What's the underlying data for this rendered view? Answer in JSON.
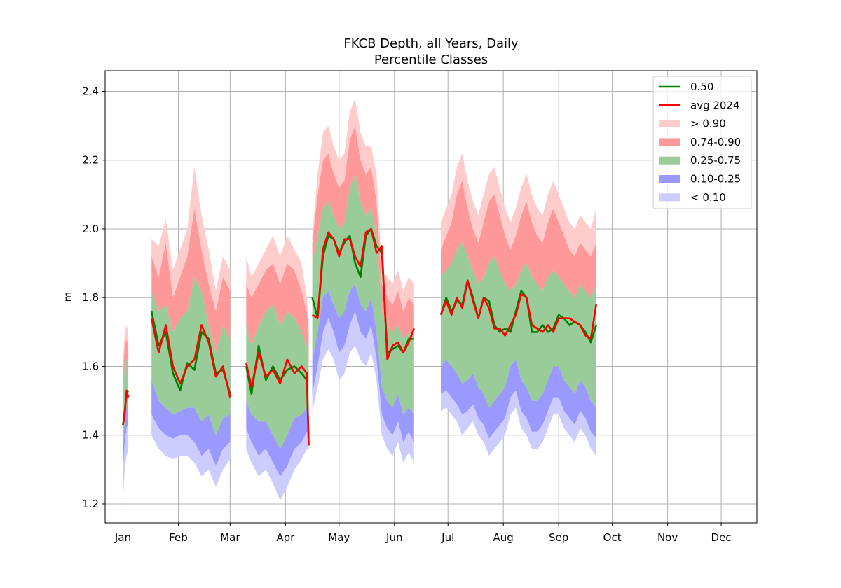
{
  "chart_data": {
    "type": "area",
    "title": "FKCB Depth, all Years, Daily",
    "subtitle": "Percentile Classes",
    "xlabel": "",
    "ylabel": "m",
    "x_ticks": [
      "Jan",
      "Feb",
      "Mar",
      "Apr",
      "May",
      "Jun",
      "Jul",
      "Aug",
      "Sep",
      "Oct",
      "Nov",
      "Dec"
    ],
    "y_ticks": [
      "1.2",
      "1.4",
      "1.6",
      "1.8",
      "2.0",
      "2.2",
      "2.4"
    ],
    "xlim_day": [
      -10,
      355
    ],
    "ylim": [
      1.145,
      2.46
    ],
    "grid": true,
    "legend_position": "top-right",
    "legend": [
      {
        "label": "0.50",
        "kind": "line",
        "color": "#008000"
      },
      {
        "label": "avg 2024",
        "kind": "line",
        "color": "#ff0000"
      },
      {
        "label": "> 0.90",
        "kind": "patch",
        "color": "#ffcccc"
      },
      {
        "label": "0.74-0.90",
        "kind": "patch",
        "color": "#ff9999"
      },
      {
        "label": "0.25-0.75",
        "kind": "patch",
        "color": "#99cc99"
      },
      {
        "label": "0.10-0.25",
        "kind": "patch",
        "color": "#9999ff"
      },
      {
        "label": "< 0.10",
        "kind": "patch",
        "color": "#ccccff"
      }
    ],
    "segments": [
      {
        "x": [
          0,
          1,
          2,
          3
        ],
        "p0": [
          1.22,
          1.3,
          1.34,
          1.36
        ],
        "p10": [
          1.3,
          1.38,
          1.42,
          1.44
        ],
        "p25": [
          1.36,
          1.44,
          1.48,
          1.5
        ],
        "p75": [
          1.52,
          1.6,
          1.62,
          1.62
        ],
        "p90": [
          1.58,
          1.66,
          1.68,
          1.66
        ],
        "p100": [
          1.62,
          1.7,
          1.72,
          1.7
        ],
        "median": [
          1.43,
          1.47,
          1.52,
          1.53
        ],
        "avg2024": [
          1.43,
          1.46,
          1.53,
          1.51
        ]
      },
      {
        "x": [
          16,
          20,
          24,
          28,
          32,
          36,
          40,
          44,
          48,
          52,
          56,
          60
        ],
        "p0": [
          1.4,
          1.36,
          1.34,
          1.33,
          1.34,
          1.34,
          1.32,
          1.28,
          1.3,
          1.25,
          1.3,
          1.33
        ],
        "p10": [
          1.46,
          1.42,
          1.4,
          1.39,
          1.4,
          1.4,
          1.38,
          1.34,
          1.36,
          1.31,
          1.36,
          1.38
        ],
        "p25": [
          1.56,
          1.5,
          1.48,
          1.46,
          1.47,
          1.48,
          1.48,
          1.44,
          1.46,
          1.4,
          1.45,
          1.46
        ],
        "p75": [
          1.82,
          1.76,
          1.78,
          1.7,
          1.74,
          1.76,
          1.86,
          1.82,
          1.72,
          1.64,
          1.72,
          1.68
        ],
        "p90": [
          1.92,
          1.86,
          1.96,
          1.8,
          1.86,
          1.92,
          2.06,
          1.94,
          1.84,
          1.76,
          1.86,
          1.82
        ],
        "p100": [
          1.97,
          1.95,
          2.03,
          1.88,
          1.94,
          2.0,
          2.18,
          2.04,
          1.94,
          1.82,
          1.92,
          1.88
        ],
        "median": [
          1.76,
          1.66,
          1.7,
          1.58,
          1.53,
          1.61,
          1.59,
          1.7,
          1.68,
          1.58,
          1.59,
          1.52
        ],
        "avg2024": [
          1.74,
          1.64,
          1.72,
          1.6,
          1.55,
          1.6,
          1.62,
          1.72,
          1.67,
          1.57,
          1.6,
          1.51
        ]
      },
      {
        "x": [
          69,
          72,
          76,
          80,
          84,
          88,
          92,
          96,
          100,
          103,
          104
        ],
        "p0": [
          1.36,
          1.32,
          1.28,
          1.3,
          1.26,
          1.21,
          1.25,
          1.3,
          1.33,
          1.36,
          1.36
        ],
        "p10": [
          1.42,
          1.38,
          1.34,
          1.36,
          1.32,
          1.28,
          1.31,
          1.36,
          1.38,
          1.41,
          1.41
        ],
        "p25": [
          1.5,
          1.46,
          1.44,
          1.44,
          1.4,
          1.36,
          1.4,
          1.45,
          1.46,
          1.48,
          1.48
        ],
        "p75": [
          1.72,
          1.66,
          1.72,
          1.76,
          1.78,
          1.72,
          1.76,
          1.74,
          1.7,
          1.66,
          1.6
        ],
        "p90": [
          1.84,
          1.8,
          1.84,
          1.88,
          1.9,
          1.84,
          1.9,
          1.88,
          1.82,
          1.76,
          1.7
        ],
        "p100": [
          1.92,
          1.86,
          1.9,
          1.94,
          1.98,
          1.92,
          1.98,
          1.94,
          1.9,
          1.8,
          1.74
        ],
        "median": [
          1.6,
          1.52,
          1.66,
          1.56,
          1.6,
          1.56,
          1.59,
          1.6,
          1.58,
          1.56,
          1.37
        ],
        "avg2024": [
          1.61,
          1.54,
          1.64,
          1.57,
          1.59,
          1.55,
          1.62,
          1.58,
          1.6,
          1.58,
          1.37
        ]
      },
      {
        "x": [
          106,
          109,
          112,
          115,
          118,
          121,
          124,
          127,
          130,
          133,
          136,
          139,
          142,
          145,
          148,
          151,
          154,
          157,
          160,
          163
        ],
        "p0": [
          1.47,
          1.54,
          1.62,
          1.65,
          1.62,
          1.56,
          1.58,
          1.64,
          1.66,
          1.62,
          1.6,
          1.64,
          1.56,
          1.4,
          1.36,
          1.34,
          1.38,
          1.32,
          1.35,
          1.32
        ],
        "p10": [
          1.52,
          1.6,
          1.7,
          1.74,
          1.7,
          1.64,
          1.66,
          1.72,
          1.76,
          1.7,
          1.68,
          1.72,
          1.62,
          1.46,
          1.42,
          1.4,
          1.44,
          1.38,
          1.41,
          1.38
        ],
        "p25": [
          1.62,
          1.7,
          1.8,
          1.82,
          1.78,
          1.74,
          1.76,
          1.82,
          1.84,
          1.78,
          1.76,
          1.8,
          1.7,
          1.54,
          1.5,
          1.48,
          1.52,
          1.46,
          1.48,
          1.46
        ],
        "p75": [
          1.9,
          1.98,
          2.06,
          2.08,
          2.04,
          2.0,
          2.02,
          2.12,
          2.16,
          2.08,
          2.04,
          2.06,
          1.98,
          1.76,
          1.72,
          1.7,
          1.72,
          1.68,
          1.7,
          1.68
        ],
        "p90": [
          1.96,
          2.1,
          2.2,
          2.22,
          2.16,
          2.12,
          2.14,
          2.26,
          2.3,
          2.2,
          2.16,
          2.18,
          2.08,
          1.84,
          1.8,
          1.78,
          1.82,
          1.76,
          1.8,
          1.78
        ],
        "p100": [
          1.98,
          2.16,
          2.28,
          2.3,
          2.24,
          2.2,
          2.22,
          2.34,
          2.38,
          2.28,
          2.24,
          2.24,
          2.16,
          1.88,
          1.86,
          1.84,
          1.88,
          1.82,
          1.86,
          1.84
        ],
        "median": [
          1.8,
          1.74,
          1.92,
          1.98,
          1.97,
          1.93,
          1.96,
          1.98,
          1.9,
          1.86,
          1.98,
          2.0,
          1.95,
          1.93,
          1.64,
          1.65,
          1.66,
          1.64,
          1.68,
          1.68
        ],
        "avg2024": [
          1.75,
          1.74,
          1.94,
          1.99,
          1.97,
          1.92,
          1.97,
          1.97,
          1.92,
          1.89,
          1.99,
          2.0,
          1.93,
          1.95,
          1.62,
          1.66,
          1.67,
          1.64,
          1.67,
          1.71
        ]
      },
      {
        "x": [
          178,
          181,
          184,
          187,
          190,
          193,
          196,
          199,
          202,
          205,
          208,
          211,
          214,
          217,
          220,
          223,
          226,
          229,
          232,
          235,
          238,
          241,
          244,
          247,
          250,
          253,
          256,
          259,
          262,
          265
        ],
        "p0": [
          1.47,
          1.48,
          1.46,
          1.44,
          1.4,
          1.42,
          1.44,
          1.4,
          1.38,
          1.34,
          1.36,
          1.38,
          1.4,
          1.46,
          1.48,
          1.42,
          1.4,
          1.36,
          1.36,
          1.38,
          1.42,
          1.46,
          1.46,
          1.42,
          1.4,
          1.38,
          1.42,
          1.4,
          1.36,
          1.34
        ],
        "p10": [
          1.52,
          1.53,
          1.51,
          1.49,
          1.46,
          1.47,
          1.49,
          1.45,
          1.43,
          1.39,
          1.41,
          1.43,
          1.45,
          1.51,
          1.53,
          1.47,
          1.45,
          1.41,
          1.41,
          1.43,
          1.47,
          1.51,
          1.51,
          1.47,
          1.45,
          1.43,
          1.47,
          1.45,
          1.41,
          1.39
        ],
        "p25": [
          1.6,
          1.62,
          1.6,
          1.58,
          1.55,
          1.56,
          1.58,
          1.54,
          1.52,
          1.48,
          1.5,
          1.52,
          1.54,
          1.6,
          1.62,
          1.56,
          1.54,
          1.5,
          1.5,
          1.52,
          1.56,
          1.6,
          1.6,
          1.56,
          1.54,
          1.52,
          1.56,
          1.54,
          1.5,
          1.48
        ],
        "p75": [
          1.86,
          1.88,
          1.9,
          1.94,
          1.96,
          1.92,
          1.88,
          1.84,
          1.86,
          1.9,
          1.92,
          1.88,
          1.84,
          1.82,
          1.84,
          1.88,
          1.9,
          1.86,
          1.84,
          1.82,
          1.86,
          1.88,
          1.86,
          1.84,
          1.82,
          1.8,
          1.84,
          1.82,
          1.8,
          1.84
        ],
        "p90": [
          1.94,
          1.98,
          2.02,
          2.1,
          2.14,
          2.06,
          2.0,
          1.96,
          2.02,
          2.08,
          2.1,
          2.04,
          1.98,
          1.94,
          1.98,
          2.04,
          2.08,
          2.02,
          1.98,
          1.96,
          2.02,
          2.06,
          2.02,
          1.98,
          1.94,
          1.92,
          1.96,
          1.94,
          1.92,
          1.96
        ],
        "p100": [
          2.02,
          2.06,
          2.1,
          2.18,
          2.22,
          2.14,
          2.08,
          2.04,
          2.1,
          2.16,
          2.18,
          2.12,
          2.06,
          2.02,
          2.06,
          2.12,
          2.16,
          2.1,
          2.06,
          2.04,
          2.1,
          2.14,
          2.1,
          2.06,
          2.02,
          2.0,
          2.04,
          2.02,
          2.0,
          2.06
        ],
        "median": [
          1.75,
          1.8,
          1.76,
          1.79,
          1.78,
          1.85,
          1.8,
          1.74,
          1.8,
          1.79,
          1.72,
          1.7,
          1.71,
          1.7,
          1.76,
          1.82,
          1.8,
          1.7,
          1.7,
          1.72,
          1.7,
          1.71,
          1.75,
          1.74,
          1.72,
          1.73,
          1.72,
          1.7,
          1.67,
          1.72
        ],
        "avg2024": [
          1.75,
          1.79,
          1.75,
          1.8,
          1.77,
          1.85,
          1.79,
          1.74,
          1.8,
          1.77,
          1.71,
          1.71,
          1.69,
          1.72,
          1.75,
          1.81,
          1.8,
          1.72,
          1.71,
          1.7,
          1.72,
          1.7,
          1.74,
          1.74,
          1.74,
          1.73,
          1.72,
          1.69,
          1.68,
          1.78
        ]
      }
    ]
  }
}
